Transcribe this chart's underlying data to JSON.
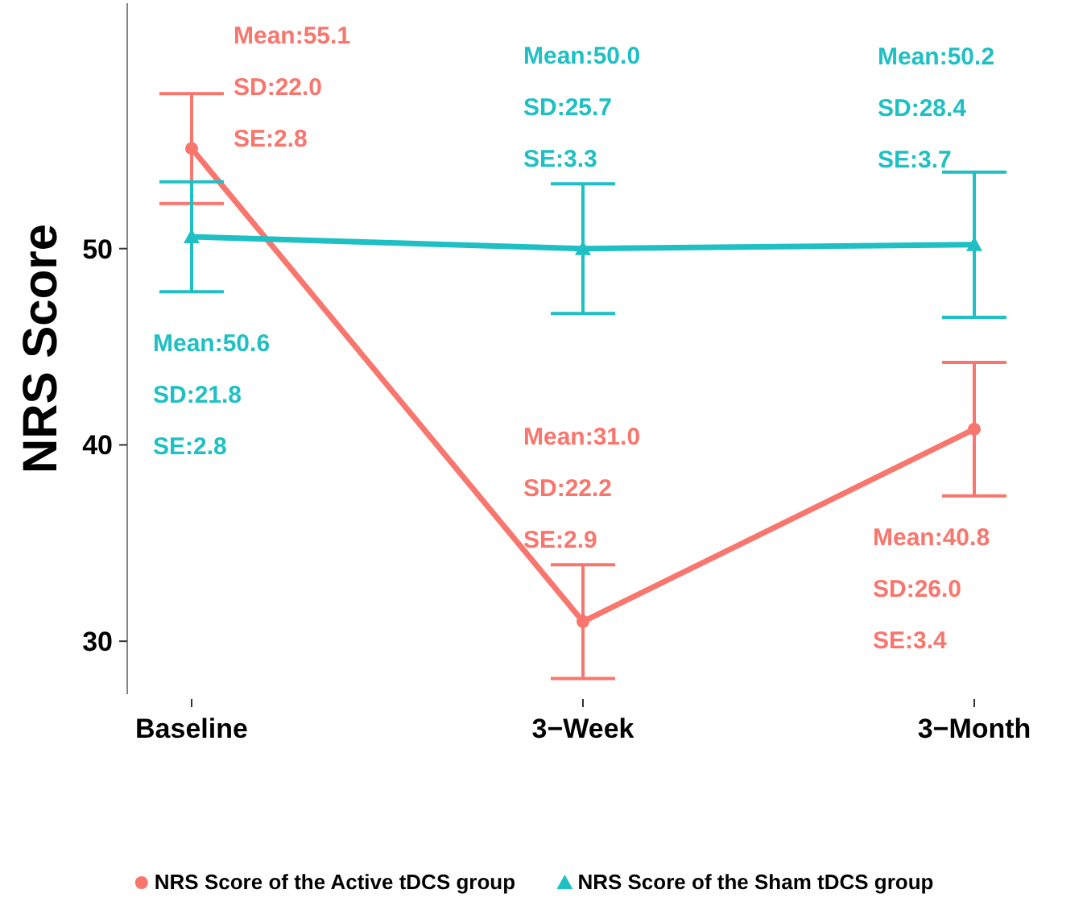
{
  "chart_data": {
    "type": "line",
    "ylabel": "NRS Score",
    "categories": [
      "Baseline",
      "3−Week",
      "3−Month"
    ],
    "series": [
      {
        "name": "NRS Score of the Active tDCS group",
        "color": "#f8766d",
        "marker": "circle",
        "values": [
          55.1,
          31.0,
          40.8
        ],
        "errors": [
          2.8,
          2.9,
          3.4
        ]
      },
      {
        "name": "NRS Score of the Sham tDCS group",
        "color": "#1fc0c4",
        "marker": "triangle",
        "values": [
          50.6,
          50.0,
          50.2
        ],
        "errors": [
          2.8,
          3.3,
          3.7
        ]
      }
    ],
    "ylim": [
      27.3,
      62.5
    ],
    "yticks": [
      30,
      40,
      50
    ],
    "grid": false,
    "legend": "bottom",
    "line_style": "solid",
    "annotations": [
      "Mean:55.1\nSD:22.0\nSE:2.8",
      "Mean:50.6\nSD:21.8\nSE:2.8",
      "Mean:31.0\nSD:22.2\nSE:2.9",
      "Mean:50.0\nSD:25.7\nSE:3.3",
      "Mean:40.8\nSD:26.0\nSE:3.4",
      "Mean:50.2\nSD:28.4\nSE:3.7"
    ]
  }
}
